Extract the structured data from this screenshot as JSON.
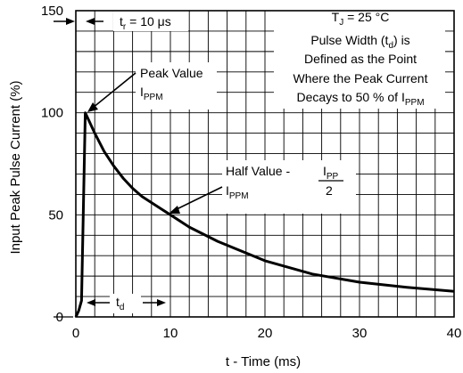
{
  "chart_data": {
    "type": "line",
    "title": "",
    "xlabel": "t - Time (ms)",
    "ylabel": "Input Peak Pulse Current (%)",
    "xlim": [
      0,
      40
    ],
    "ylim": [
      0,
      150
    ],
    "x_ticks": [
      0,
      10,
      20,
      30,
      40
    ],
    "y_ticks": [
      0,
      50,
      100,
      150
    ],
    "grid": true,
    "legend": "none",
    "series": [
      {
        "x": [
          0,
          0.3,
          0.6,
          1.0,
          1.5,
          2,
          3,
          4,
          5,
          6,
          7,
          8,
          9,
          10,
          12,
          15,
          20,
          25,
          30,
          35,
          40
        ],
        "y": [
          0,
          3,
          8,
          100,
          95,
          90,
          81,
          74,
          68,
          63,
          59,
          56,
          53,
          50,
          44,
          37,
          27.5,
          21,
          17,
          14.5,
          12.5
        ]
      }
    ],
    "annotations": {
      "tr": {
        "main": "t",
        "sub": "r",
        "rest": " = 10 μs"
      },
      "tj": {
        "main": "T",
        "sub": "J",
        "rest": " = 25 °C"
      },
      "desc": {
        "line1": "Pulse Width (t",
        "line1_sub": "d",
        "line1_end": ") is",
        "line2": "Defined as the Point",
        "line3": "Where the Peak Current",
        "line4": "Decays to 50 % of I",
        "line4_sub": "PPM"
      },
      "peak": {
        "line1": "Peak Value",
        "line2": "I",
        "line2_sub": "PPM"
      },
      "half": {
        "line1": "Half Value - ",
        "line2": "I",
        "line2_sub": "PPM",
        "frac_num": "I",
        "frac_num_sub": "PP",
        "frac_den": "2"
      },
      "td": {
        "main": "t",
        "sub": "d"
      }
    }
  }
}
